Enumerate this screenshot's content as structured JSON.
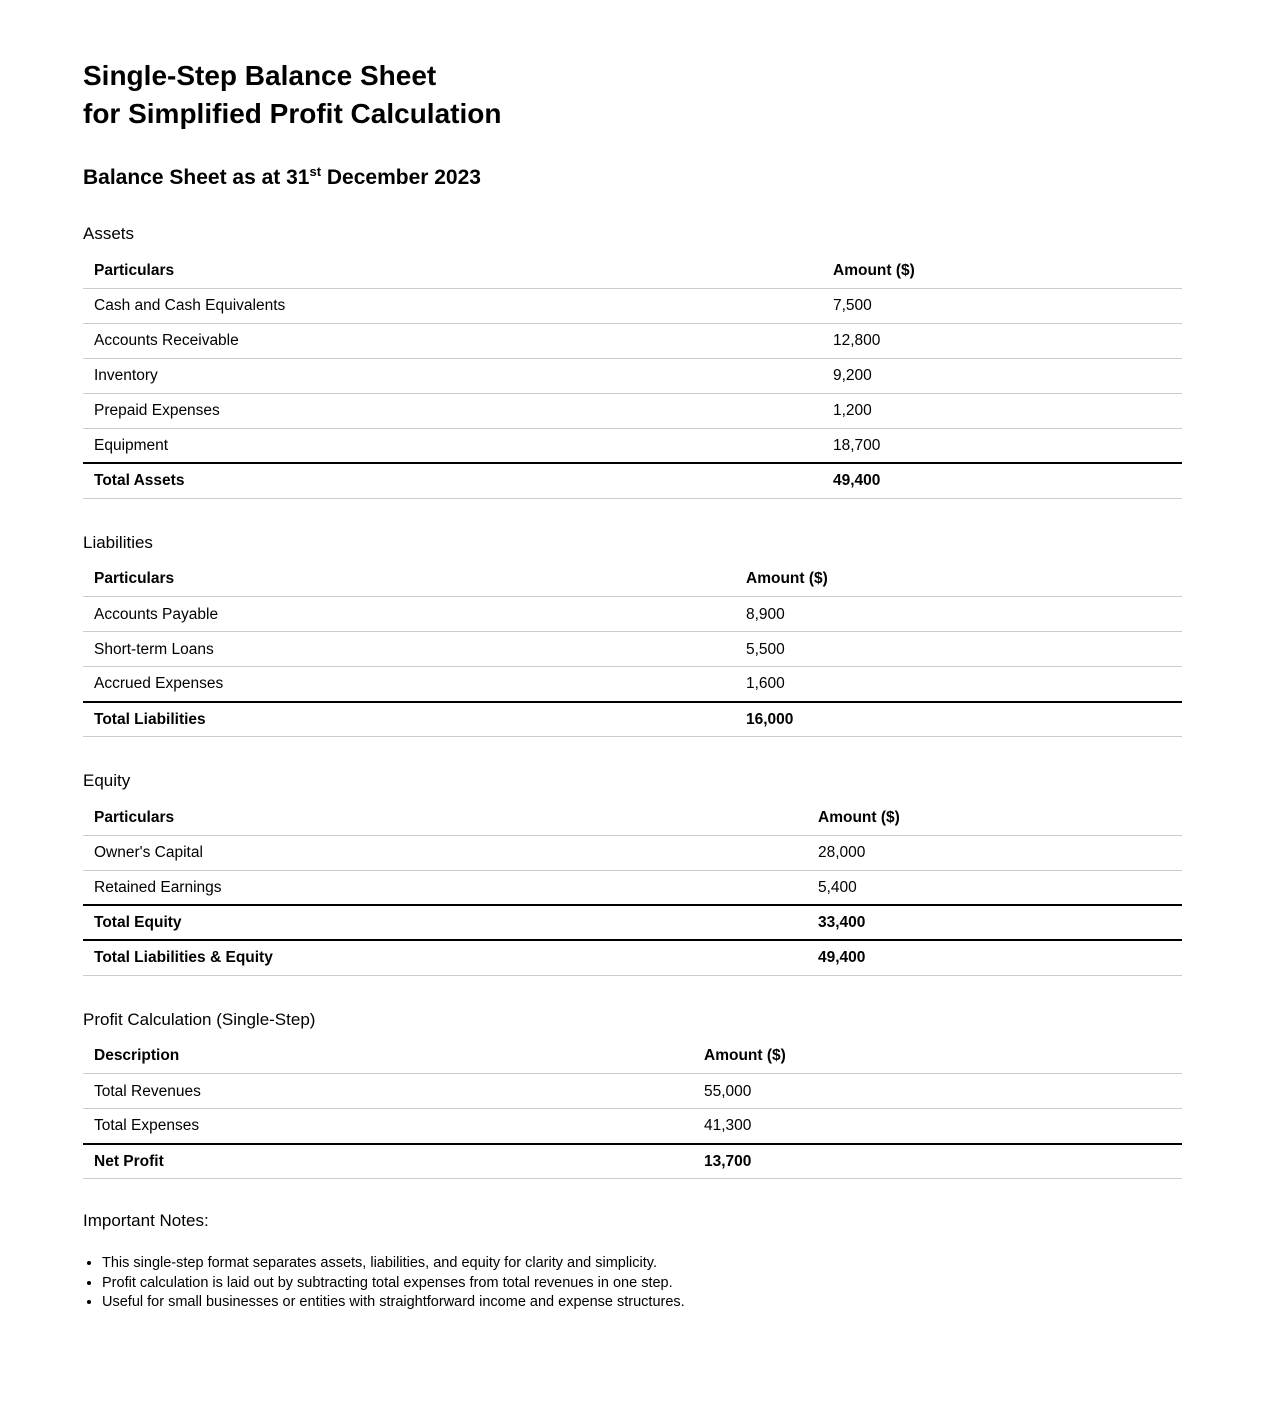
{
  "document": {
    "title_line1": "Single-Step Balance Sheet",
    "title_line2": "for Simplified Profit Calculation",
    "subtitle_prefix": "Balance Sheet as at 31",
    "subtitle_sup": "st",
    "subtitle_suffix": " December 2023"
  },
  "sections": [
    {
      "label": "Assets",
      "col_particulars": "Particulars",
      "col_amount": "Amount ($)",
      "rows": [
        {
          "label": "Cash and Cash Equivalents",
          "amount": "7,500"
        },
        {
          "label": "Accounts Receivable",
          "amount": "12,800"
        },
        {
          "label": "Inventory",
          "amount": "9,200"
        },
        {
          "label": "Prepaid Expenses",
          "amount": "1,200"
        },
        {
          "label": "Equipment",
          "amount": "18,700"
        }
      ],
      "totals": [
        {
          "label": "Total Assets",
          "amount": "49,400"
        }
      ]
    },
    {
      "label": "Liabilities",
      "col_particulars": "Particulars",
      "col_amount": "Amount ($)",
      "rows": [
        {
          "label": "Accounts Payable",
          "amount": "8,900"
        },
        {
          "label": "Short-term Loans",
          "amount": "5,500"
        },
        {
          "label": "Accrued Expenses",
          "amount": "1,600"
        }
      ],
      "totals": [
        {
          "label": "Total Liabilities",
          "amount": "16,000"
        }
      ]
    },
    {
      "label": "Equity",
      "col_particulars": "Particulars",
      "col_amount": "Amount ($)",
      "rows": [
        {
          "label": "Owner's Capital",
          "amount": "28,000"
        },
        {
          "label": "Retained Earnings",
          "amount": "5,400"
        }
      ],
      "totals": [
        {
          "label": "Total Equity",
          "amount": "33,400"
        },
        {
          "label": "Total Liabilities & Equity",
          "amount": "49,400"
        }
      ]
    },
    {
      "label": "Profit Calculation (Single-Step)",
      "col_particulars": "Description",
      "col_amount": "Amount ($)",
      "rows": [
        {
          "label": "Total Revenues",
          "amount": "55,000"
        },
        {
          "label": "Total Expenses",
          "amount": "41,300"
        }
      ],
      "totals": [
        {
          "label": "Net Profit",
          "amount": "13,700"
        }
      ]
    }
  ],
  "notes": {
    "heading": "Important Notes:",
    "items": [
      "This single-step format separates assets, liabilities, and equity for clarity and simplicity.",
      "Profit calculation is laid out by subtracting total expenses from total revenues in one step.",
      "Useful for small businesses or entities with straightforward income and expense structures."
    ]
  }
}
